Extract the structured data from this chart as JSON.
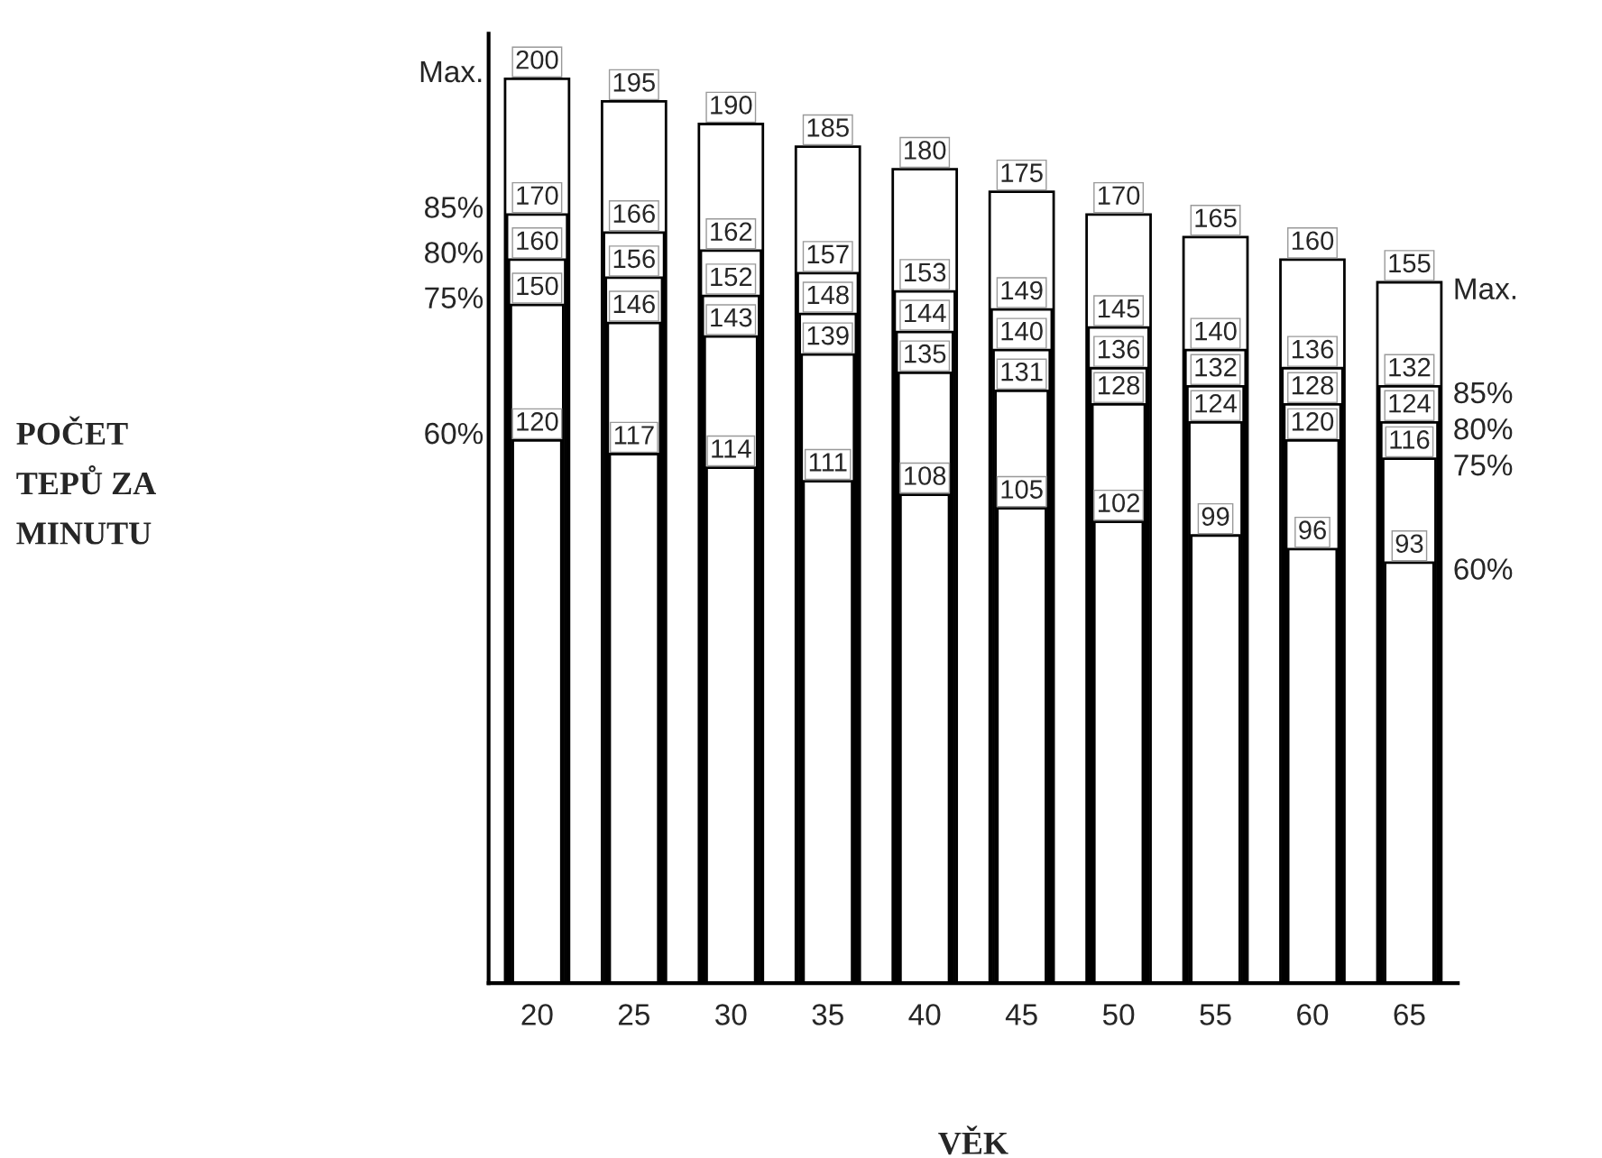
{
  "chart_data": {
    "type": "bar",
    "categories": [
      "20",
      "25",
      "30",
      "35",
      "40",
      "45",
      "50",
      "55",
      "60",
      "65"
    ],
    "series": [
      {
        "name": "Max.",
        "color": "#ffffff",
        "values": [
          200,
          195,
          190,
          185,
          180,
          175,
          170,
          165,
          160,
          155
        ]
      },
      {
        "name": "85%",
        "color": "#ffffff",
        "values": [
          170,
          166,
          162,
          157,
          153,
          149,
          145,
          140,
          136,
          132
        ]
      },
      {
        "name": "80%",
        "color": "#ffffff",
        "values": [
          160,
          156,
          152,
          148,
          144,
          140,
          136,
          132,
          128,
          124
        ]
      },
      {
        "name": "75%",
        "color": "#ffffff",
        "values": [
          150,
          146,
          143,
          139,
          135,
          131,
          128,
          124,
          120,
          116
        ]
      },
      {
        "name": "60%",
        "color": "#ffffff",
        "values": [
          120,
          117,
          114,
          111,
          108,
          105,
          102,
          99,
          96,
          93
        ]
      }
    ],
    "xlabel": "VĚK",
    "annotations": [
      "POČET\nTEPŮ ZA\nMINUTU"
    ],
    "tick_labels": "x",
    "data_labels": true,
    "legend": false,
    "grid": false
  }
}
